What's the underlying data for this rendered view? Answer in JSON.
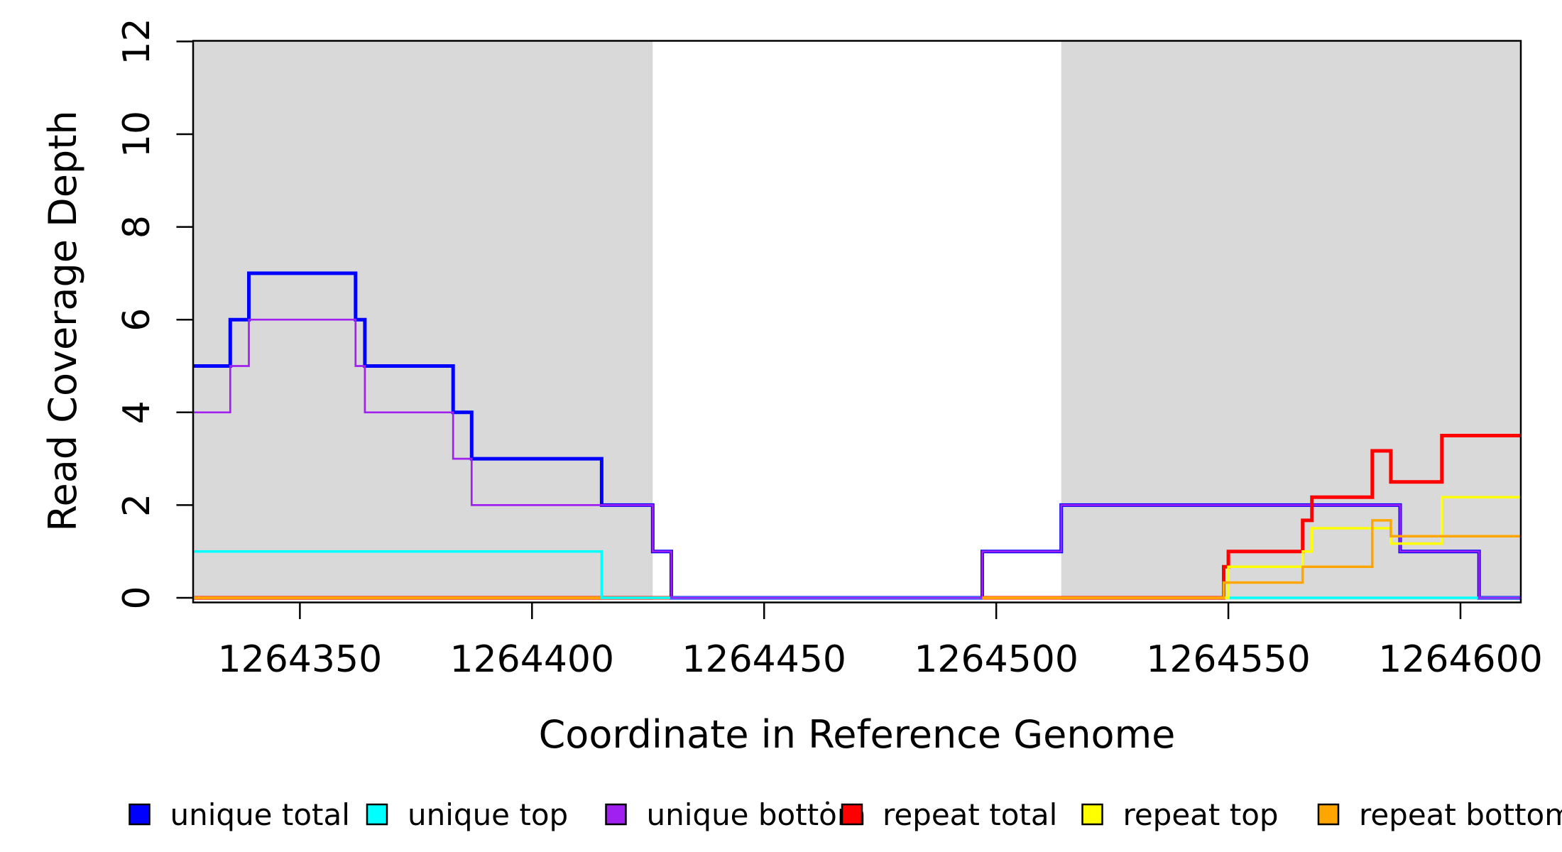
{
  "figure": {
    "background": "#FFFFFF",
    "axis_color": "#000000"
  },
  "chart_data": {
    "type": "line",
    "step_mode": "step-after",
    "title": "",
    "xlabel": "Coordinate in Reference Genome",
    "ylabel": "Read Coverage Depth",
    "xlim": [
      1264327,
      1264613
    ],
    "ylim": [
      0,
      12
    ],
    "x_ticks": [
      1264350,
      1264400,
      1264450,
      1264500,
      1264550,
      1264600
    ],
    "y_ticks": [
      0,
      2,
      4,
      6,
      8,
      10,
      12
    ],
    "grid": false,
    "plot_background": "#FFFFFF",
    "shaded_regions": [
      {
        "name": "left-shaded-interval",
        "x_start": 1264327,
        "x_end": 1264426,
        "color": "#D9D9D9"
      },
      {
        "name": "right-shaded-interval",
        "x_start": 1264514,
        "x_end": 1264613,
        "color": "#D9D9D9"
      }
    ],
    "series": [
      {
        "name": "unique total",
        "color": "#0000FF",
        "line_width": 5,
        "group": "unique",
        "points": [
          [
            1264327,
            5
          ],
          [
            1264335,
            6
          ],
          [
            1264339,
            7
          ],
          [
            1264362,
            6
          ],
          [
            1264364,
            5
          ],
          [
            1264383,
            4
          ],
          [
            1264387,
            3
          ],
          [
            1264415,
            2
          ],
          [
            1264426,
            1
          ],
          [
            1264430,
            0
          ],
          [
            1264497,
            1
          ],
          [
            1264514,
            2
          ],
          [
            1264587,
            1
          ],
          [
            1264604,
            0
          ]
        ]
      },
      {
        "name": "unique top",
        "color": "#00FFFF",
        "line_width": 3.5,
        "group": "unique",
        "points": [
          [
            1264327,
            1
          ],
          [
            1264415,
            0
          ]
        ]
      },
      {
        "name": "unique bottom",
        "color": "#A020F0",
        "line_width": 2.7,
        "group": "unique",
        "points": [
          [
            1264327,
            4
          ],
          [
            1264335,
            5
          ],
          [
            1264339,
            6
          ],
          [
            1264362,
            5
          ],
          [
            1264364,
            4
          ],
          [
            1264383,
            3
          ],
          [
            1264387,
            2
          ],
          [
            1264426,
            1
          ],
          [
            1264430,
            0
          ],
          [
            1264497,
            1
          ],
          [
            1264514,
            2
          ],
          [
            1264587,
            1
          ],
          [
            1264604,
            0
          ]
        ]
      },
      {
        "name": "repeat total",
        "color": "#FF0000",
        "line_width": 5,
        "group": "repeat",
        "points": [
          [
            1264327,
            0
          ],
          [
            1264549,
            0.67
          ],
          [
            1264550,
            1
          ],
          [
            1264566,
            1.67
          ],
          [
            1264568,
            2.17
          ],
          [
            1264581,
            3.17
          ],
          [
            1264585,
            2.5
          ],
          [
            1264596,
            3.5
          ]
        ]
      },
      {
        "name": "repeat top",
        "color": "#FFFF00",
        "line_width": 3.5,
        "group": "repeat",
        "points": [
          [
            1264327,
            0
          ],
          [
            1264550,
            0.67
          ],
          [
            1264566,
            1
          ],
          [
            1264568,
            1.5
          ],
          [
            1264585,
            1.17
          ],
          [
            1264596,
            2.17
          ]
        ]
      },
      {
        "name": "repeat bottom",
        "color": "#FFA500",
        "line_width": 3.5,
        "group": "repeat",
        "points": [
          [
            1264327,
            0
          ],
          [
            1264549,
            0.33
          ],
          [
            1264566,
            0.67
          ],
          [
            1264581,
            1.67
          ],
          [
            1264585,
            1.33
          ]
        ]
      }
    ],
    "legend": {
      "position": "bottom",
      "entries": [
        {
          "label": "unique total",
          "color": "#0000FF"
        },
        {
          "label": "unique top",
          "color": "#00FFFF"
        },
        {
          "label": "unique bottom",
          "color": "#A020F0"
        },
        {
          "label": "repeat total",
          "color": "#FF0000"
        },
        {
          "label": "repeat top",
          "color": "#FFFF00"
        },
        {
          "label": "repeat bottom",
          "color": "#FFA500"
        }
      ],
      "stray_dot_artifact": true
    }
  }
}
